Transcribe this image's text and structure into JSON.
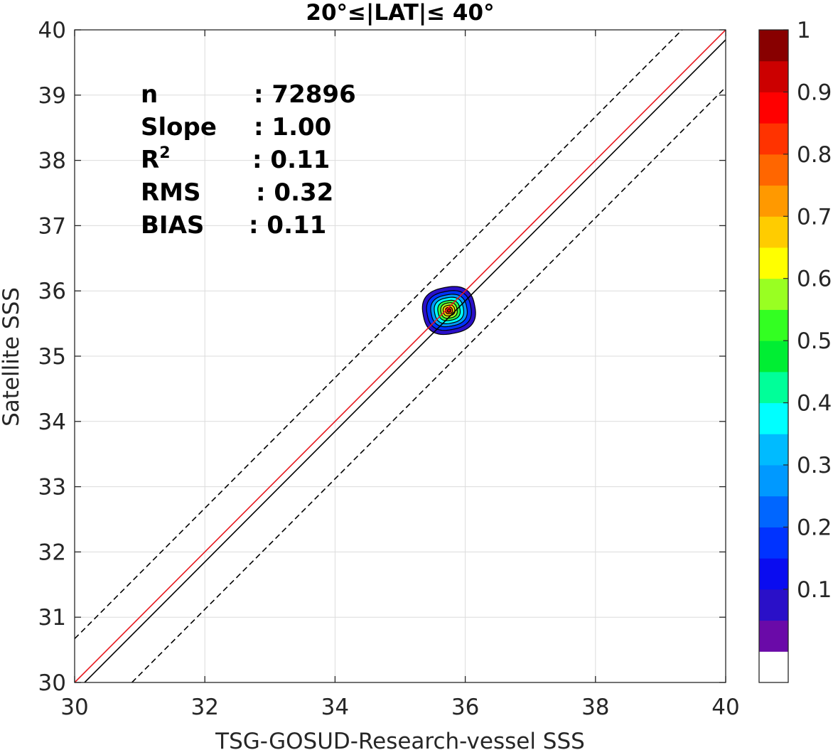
{
  "chart_data": {
    "type": "contour",
    "title": "20°≤|LAT|≤ 40°",
    "xlabel": "TSG-GOSUD-Research-vessel SSS",
    "ylabel": "Satellite SSS",
    "xlim": [
      30,
      40
    ],
    "ylim": [
      30,
      40
    ],
    "xticks": [
      "30",
      "32",
      "34",
      "36",
      "38",
      "40"
    ],
    "yticks": [
      "30",
      "31",
      "32",
      "33",
      "34",
      "35",
      "36",
      "37",
      "38",
      "39",
      "40"
    ],
    "grid": true,
    "stats": [
      {
        "label": "n",
        "value": ": 72896"
      },
      {
        "label": "Slope",
        "value": ": 1.00"
      },
      {
        "label": "R",
        "sup": "2",
        "value": ": 0.11"
      },
      {
        "label": "RMS",
        "value": ": 0.32"
      },
      {
        "label": "BIAS",
        "value": ": 0.11"
      }
    ],
    "lines": [
      {
        "name": "one-to-one",
        "color": "#000000",
        "style": "solid",
        "slope": 1.0,
        "intercept": 0.0
      },
      {
        "name": "upper-bound",
        "color": "#000000",
        "style": "dashed",
        "slope": 1.0,
        "intercept": 0.67
      },
      {
        "name": "lower-bound",
        "color": "#000000",
        "style": "dashed",
        "slope": 1.0,
        "intercept": -0.88
      },
      {
        "name": "regression",
        "color": "#e8191f",
        "style": "solid",
        "slope": 1.0,
        "intercept": 0.0
      }
    ],
    "density_peak": {
      "x": 35.75,
      "y": 35.7
    },
    "contour_levels": [
      {
        "level": 0.05,
        "rx": 0.45,
        "ry": 0.4,
        "color": "#2a10c8"
      },
      {
        "level": 0.15,
        "rx": 0.38,
        "ry": 0.33,
        "color": "#0033ff"
      },
      {
        "level": 0.25,
        "rx": 0.31,
        "ry": 0.27,
        "color": "#0099ff"
      },
      {
        "level": 0.35,
        "rx": 0.25,
        "ry": 0.22,
        "color": "#00ffff"
      },
      {
        "level": 0.45,
        "rx": 0.19,
        "ry": 0.17,
        "color": "#33ff44"
      },
      {
        "level": 0.55,
        "rx": 0.14,
        "ry": 0.13,
        "color": "#aaff22"
      },
      {
        "level": 0.65,
        "rx": 0.1,
        "ry": 0.09,
        "color": "#ffcc00"
      },
      {
        "level": 0.8,
        "rx": 0.06,
        "ry": 0.055,
        "color": "#ff5500"
      },
      {
        "level": 0.95,
        "rx": 0.03,
        "ry": 0.028,
        "color": "#cc0000"
      }
    ],
    "colorbar": {
      "ticks": [
        "0.1",
        "0.2",
        "0.3",
        "0.4",
        "0.5",
        "0.6",
        "0.7",
        "0.8",
        "0.9",
        "1"
      ],
      "tick_values": [
        0.1,
        0.2,
        0.3,
        0.4,
        0.5,
        0.6,
        0.7,
        0.8,
        0.9,
        1.0
      ],
      "levels": [
        0,
        0.05,
        0.1,
        0.15,
        0.2,
        0.25,
        0.3,
        0.35,
        0.4,
        0.45,
        0.5,
        0.55,
        0.6,
        0.65,
        0.7,
        0.75,
        0.8,
        0.85,
        0.9,
        0.95,
        1.0
      ],
      "colors": [
        "#ffffff",
        "#6a0aa8",
        "#2a10c8",
        "#0a0cf0",
        "#0033ff",
        "#0066ff",
        "#0099ff",
        "#00bbff",
        "#00ffff",
        "#00ff99",
        "#00ee33",
        "#33ff22",
        "#99ff22",
        "#ffff00",
        "#ffcc00",
        "#ff9900",
        "#ff6600",
        "#ff3300",
        "#ff0000",
        "#cc0000",
        "#880000"
      ]
    }
  }
}
